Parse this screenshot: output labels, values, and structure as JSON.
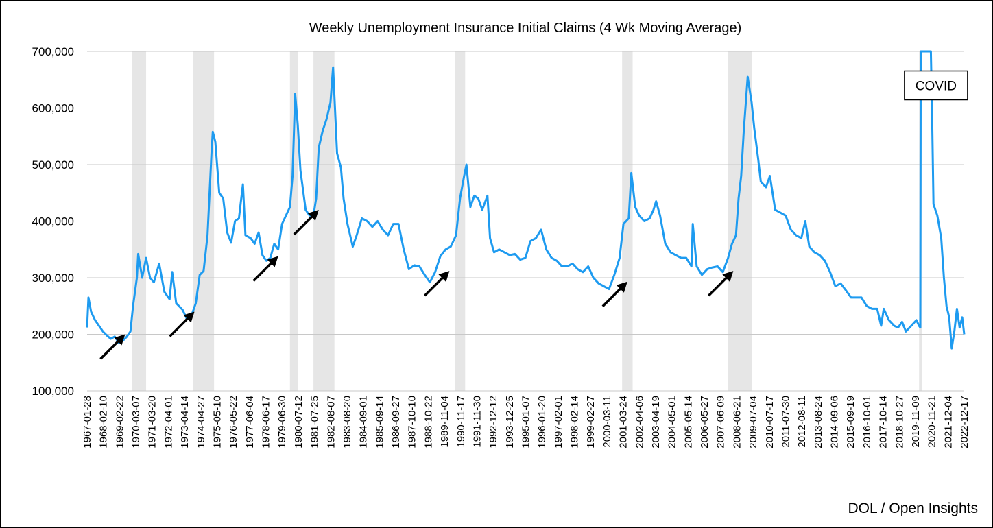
{
  "credit": "DOL / Open Insights",
  "colors": {
    "line": "#1e9bf0",
    "recession": "#e6e6e6",
    "grid": "#c8c8c8",
    "arrow": "#000000"
  },
  "chart_data": {
    "type": "line",
    "title": "Weekly Unemployment Insurance Initial Claims (4 Wk Moving Average)",
    "xlabel": "",
    "ylabel": "",
    "ylim": [
      100000,
      700000
    ],
    "xlim": [
      "1967-01-28",
      "2022-12-17"
    ],
    "y_ticks": [
      "100,000",
      "200,000",
      "300,000",
      "400,000",
      "500,000",
      "600,000",
      "700,000"
    ],
    "x_tick_labels": [
      "1967-01-28",
      "1968-02-10",
      "1969-02-22",
      "1970-03-07",
      "1971-03-20",
      "1972-04-01",
      "1973-04-14",
      "1974-04-27",
      "1975-05-10",
      "1976-05-22",
      "1977-06-04",
      "1978-06-17",
      "1979-06-30",
      "1980-07-12",
      "1981-07-25",
      "1982-08-07",
      "1983-08-20",
      "1984-09-01",
      "1985-09-14",
      "1986-09-27",
      "1987-10-10",
      "1988-10-22",
      "1989-11-04",
      "1990-11-17",
      "1991-11-30",
      "1992-12-12",
      "1993-12-25",
      "1995-01-07",
      "1996-01-20",
      "1997-02-01",
      "1998-02-14",
      "1999-02-27",
      "2000-03-11",
      "2001-03-24",
      "2002-04-06",
      "2003-04-19",
      "2004-05-01",
      "2005-05-14",
      "2006-05-27",
      "2007-06-09",
      "2008-06-21",
      "2009-07-04",
      "2010-07-17",
      "2011-07-30",
      "2012-08-11",
      "2013-08-24",
      "2014-09-06",
      "2015-09-19",
      "2016-10-01",
      "2017-10-14",
      "2018-10-27",
      "2019-11-09",
      "2020-11-21",
      "2021-12-04",
      "2022-12-17"
    ],
    "grid": true,
    "legend": "none",
    "recessions": [
      [
        "1969-12-01",
        "1970-11-01"
      ],
      [
        "1973-11-01",
        "1975-03-01"
      ],
      [
        "1980-01-01",
        "1980-07-01"
      ],
      [
        "1981-07-01",
        "1982-11-01"
      ],
      [
        "1990-07-01",
        "1991-03-01"
      ],
      [
        "2001-03-01",
        "2001-11-01"
      ],
      [
        "2007-12-01",
        "2009-06-01"
      ],
      [
        "2020-02-01",
        "2020-04-01"
      ]
    ],
    "annotations": [
      {
        "text": "COVID",
        "x": "2021-03-01",
        "y": 640000
      }
    ],
    "arrows": [
      {
        "x": "1969-07-01",
        "y": 200000
      },
      {
        "x": "1973-12-01",
        "y": 240000
      },
      {
        "x": "1979-04-01",
        "y": 338000
      },
      {
        "x": "1981-11-01",
        "y": 420000
      },
      {
        "x": "1990-03-01",
        "y": 312000
      },
      {
        "x": "2001-07-01",
        "y": 293000
      },
      {
        "x": "2008-04-01",
        "y": 312000
      }
    ],
    "series": [
      {
        "points": [
          [
            "1967-01-28",
            212000
          ],
          [
            "1967-03-01",
            265000
          ],
          [
            "1967-05-01",
            240000
          ],
          [
            "1967-08-01",
            225000
          ],
          [
            "1967-11-01",
            215000
          ],
          [
            "1968-02-01",
            205000
          ],
          [
            "1968-05-01",
            198000
          ],
          [
            "1968-08-01",
            192000
          ],
          [
            "1968-11-01",
            196000
          ],
          [
            "1969-02-01",
            185000
          ],
          [
            "1969-05-01",
            188000
          ],
          [
            "1969-08-01",
            195000
          ],
          [
            "1969-11-01",
            205000
          ],
          [
            "1970-01-01",
            250000
          ],
          [
            "1970-04-01",
            300000
          ],
          [
            "1970-05-01",
            342000
          ],
          [
            "1970-08-01",
            300000
          ],
          [
            "1970-11-01",
            335000
          ],
          [
            "1971-02-01",
            300000
          ],
          [
            "1971-05-01",
            292000
          ],
          [
            "1971-09-01",
            325000
          ],
          [
            "1972-01-01",
            275000
          ],
          [
            "1972-05-01",
            262000
          ],
          [
            "1972-07-01",
            310000
          ],
          [
            "1972-10-01",
            255000
          ],
          [
            "1973-03-01",
            243000
          ],
          [
            "1973-06-01",
            228000
          ],
          [
            "1973-10-01",
            235000
          ],
          [
            "1974-01-01",
            255000
          ],
          [
            "1974-04-01",
            305000
          ],
          [
            "1974-07-01",
            312000
          ],
          [
            "1974-10-01",
            375000
          ],
          [
            "1975-01-01",
            520000
          ],
          [
            "1975-02-01",
            558000
          ],
          [
            "1975-04-01",
            540000
          ],
          [
            "1975-07-01",
            450000
          ],
          [
            "1975-10-01",
            440000
          ],
          [
            "1976-01-01",
            380000
          ],
          [
            "1976-04-01",
            362000
          ],
          [
            "1976-07-01",
            400000
          ],
          [
            "1976-10-01",
            405000
          ],
          [
            "1977-01-01",
            465000
          ],
          [
            "1977-03-01",
            375000
          ],
          [
            "1977-07-01",
            370000
          ],
          [
            "1977-10-01",
            360000
          ],
          [
            "1978-01-01",
            380000
          ],
          [
            "1978-04-01",
            340000
          ],
          [
            "1978-07-01",
            330000
          ],
          [
            "1978-10-01",
            335000
          ],
          [
            "1979-01-01",
            360000
          ],
          [
            "1979-04-01",
            350000
          ],
          [
            "1979-07-01",
            395000
          ],
          [
            "1979-10-01",
            410000
          ],
          [
            "1980-01-01",
            425000
          ],
          [
            "1980-03-01",
            480000
          ],
          [
            "1980-05-01",
            625000
          ],
          [
            "1980-07-01",
            570000
          ],
          [
            "1980-09-01",
            490000
          ],
          [
            "1981-01-01",
            420000
          ],
          [
            "1981-04-01",
            410000
          ],
          [
            "1981-07-01",
            410000
          ],
          [
            "1981-09-01",
            440000
          ],
          [
            "1981-11-01",
            530000
          ],
          [
            "1982-02-01",
            560000
          ],
          [
            "1982-05-01",
            580000
          ],
          [
            "1982-08-01",
            610000
          ],
          [
            "1982-10-01",
            672000
          ],
          [
            "1983-01-01",
            520000
          ],
          [
            "1983-04-01",
            495000
          ],
          [
            "1983-06-01",
            440000
          ],
          [
            "1983-09-01",
            395000
          ],
          [
            "1984-01-01",
            355000
          ],
          [
            "1984-04-01",
            375000
          ],
          [
            "1984-08-01",
            405000
          ],
          [
            "1984-12-01",
            400000
          ],
          [
            "1985-04-01",
            390000
          ],
          [
            "1985-08-01",
            400000
          ],
          [
            "1985-12-01",
            385000
          ],
          [
            "1986-04-01",
            375000
          ],
          [
            "1986-08-01",
            395000
          ],
          [
            "1986-12-01",
            395000
          ],
          [
            "1987-04-01",
            350000
          ],
          [
            "1987-08-01",
            315000
          ],
          [
            "1987-12-01",
            322000
          ],
          [
            "1988-04-01",
            320000
          ],
          [
            "1988-08-01",
            305000
          ],
          [
            "1988-12-01",
            292000
          ],
          [
            "1989-04-01",
            310000
          ],
          [
            "1989-08-01",
            338000
          ],
          [
            "1989-12-01",
            350000
          ],
          [
            "1990-04-01",
            355000
          ],
          [
            "1990-08-01",
            375000
          ],
          [
            "1990-11-01",
            440000
          ],
          [
            "1991-02-01",
            478000
          ],
          [
            "1991-04-01",
            500000
          ],
          [
            "1991-07-01",
            425000
          ],
          [
            "1991-10-01",
            445000
          ],
          [
            "1992-01-01",
            440000
          ],
          [
            "1992-04-01",
            420000
          ],
          [
            "1992-08-01",
            445000
          ],
          [
            "1992-10-01",
            370000
          ],
          [
            "1993-01-01",
            345000
          ],
          [
            "1993-05-01",
            350000
          ],
          [
            "1993-09-01",
            345000
          ],
          [
            "1994-01-01",
            340000
          ],
          [
            "1994-05-01",
            342000
          ],
          [
            "1994-09-01",
            332000
          ],
          [
            "1995-01-01",
            335000
          ],
          [
            "1995-05-01",
            365000
          ],
          [
            "1995-09-01",
            370000
          ],
          [
            "1996-01-01",
            385000
          ],
          [
            "1996-05-01",
            350000
          ],
          [
            "1996-09-01",
            335000
          ],
          [
            "1997-01-01",
            330000
          ],
          [
            "1997-05-01",
            320000
          ],
          [
            "1997-09-01",
            320000
          ],
          [
            "1998-01-01",
            325000
          ],
          [
            "1998-05-01",
            315000
          ],
          [
            "1998-09-01",
            310000
          ],
          [
            "1999-01-01",
            320000
          ],
          [
            "1999-05-01",
            300000
          ],
          [
            "1999-09-01",
            290000
          ],
          [
            "2000-01-01",
            285000
          ],
          [
            "2000-05-01",
            280000
          ],
          [
            "2000-09-01",
            305000
          ],
          [
            "2001-01-01",
            335000
          ],
          [
            "2001-04-01",
            395000
          ],
          [
            "2001-08-01",
            405000
          ],
          [
            "2001-10-01",
            485000
          ],
          [
            "2002-01-01",
            425000
          ],
          [
            "2002-04-01",
            410000
          ],
          [
            "2002-08-01",
            400000
          ],
          [
            "2002-12-01",
            405000
          ],
          [
            "2003-03-01",
            420000
          ],
          [
            "2003-05-01",
            435000
          ],
          [
            "2003-08-01",
            410000
          ],
          [
            "2003-12-01",
            360000
          ],
          [
            "2004-04-01",
            345000
          ],
          [
            "2004-08-01",
            340000
          ],
          [
            "2004-12-01",
            335000
          ],
          [
            "2005-04-01",
            335000
          ],
          [
            "2005-08-01",
            320000
          ],
          [
            "2005-09-01",
            395000
          ],
          [
            "2005-12-01",
            320000
          ],
          [
            "2006-04-01",
            305000
          ],
          [
            "2006-08-01",
            315000
          ],
          [
            "2006-12-01",
            318000
          ],
          [
            "2007-04-01",
            320000
          ],
          [
            "2007-08-01",
            310000
          ],
          [
            "2007-12-01",
            335000
          ],
          [
            "2008-03-01",
            360000
          ],
          [
            "2008-06-01",
            375000
          ],
          [
            "2008-08-01",
            440000
          ],
          [
            "2008-10-01",
            480000
          ],
          [
            "2008-12-01",
            560000
          ],
          [
            "2009-03-01",
            655000
          ],
          [
            "2009-06-01",
            610000
          ],
          [
            "2009-08-01",
            565000
          ],
          [
            "2009-11-01",
            510000
          ],
          [
            "2010-01-01",
            470000
          ],
          [
            "2010-05-01",
            460000
          ],
          [
            "2010-08-01",
            480000
          ],
          [
            "2010-12-01",
            420000
          ],
          [
            "2011-04-01",
            415000
          ],
          [
            "2011-08-01",
            410000
          ],
          [
            "2011-12-01",
            385000
          ],
          [
            "2012-04-01",
            375000
          ],
          [
            "2012-08-01",
            370000
          ],
          [
            "2012-11-01",
            400000
          ],
          [
            "2013-02-01",
            355000
          ],
          [
            "2013-06-01",
            345000
          ],
          [
            "2013-10-01",
            340000
          ],
          [
            "2014-02-01",
            330000
          ],
          [
            "2014-06-01",
            310000
          ],
          [
            "2014-10-01",
            285000
          ],
          [
            "2015-02-01",
            290000
          ],
          [
            "2015-06-01",
            278000
          ],
          [
            "2015-10-01",
            265000
          ],
          [
            "2016-02-01",
            265000
          ],
          [
            "2016-06-01",
            265000
          ],
          [
            "2016-10-01",
            250000
          ],
          [
            "2017-02-01",
            245000
          ],
          [
            "2017-06-01",
            245000
          ],
          [
            "2017-09-01",
            215000
          ],
          [
            "2017-11-01",
            245000
          ],
          [
            "2018-03-01",
            225000
          ],
          [
            "2018-07-01",
            215000
          ],
          [
            "2018-10-01",
            212000
          ],
          [
            "2019-01-01",
            222000
          ],
          [
            "2019-04-01",
            205000
          ],
          [
            "2019-08-01",
            215000
          ],
          [
            "2019-12-01",
            225000
          ],
          [
            "2020-02-01",
            215000
          ],
          [
            "2020-03-01",
            212000
          ],
          [
            "2020-03-10",
            700000
          ],
          [
            "2020-11-01",
            700000
          ],
          [
            "2020-12-01",
            580000
          ],
          [
            "2021-01-01",
            430000
          ],
          [
            "2021-04-01",
            410000
          ],
          [
            "2021-07-01",
            370000
          ],
          [
            "2021-09-01",
            300000
          ],
          [
            "2021-11-01",
            250000
          ],
          [
            "2022-01-01",
            230000
          ],
          [
            "2022-03-01",
            175000
          ],
          [
            "2022-05-01",
            205000
          ],
          [
            "2022-07-01",
            245000
          ],
          [
            "2022-09-01",
            212000
          ],
          [
            "2022-11-01",
            230000
          ],
          [
            "2022-12-17",
            200000
          ]
        ]
      }
    ]
  }
}
